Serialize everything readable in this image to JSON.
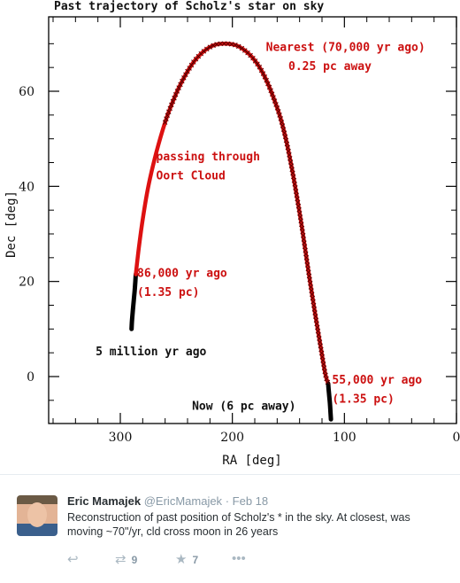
{
  "chart_data": {
    "type": "scatter",
    "title": "Past trajectory of Scholz's star on sky",
    "xlabel": "RA [deg]",
    "ylabel": "Dec [deg]",
    "xlim": [
      360,
      0
    ],
    "ylim": [
      -10,
      72
    ],
    "x_ticks": [
      300,
      200,
      100,
      0
    ],
    "y_ticks": [
      0,
      20,
      40,
      60
    ],
    "grid": false,
    "reversed_x": true,
    "track_black_start": [
      [
        290,
        10
      ],
      [
        289.5,
        12
      ],
      [
        288.8,
        14
      ],
      [
        288,
        16
      ],
      [
        287.2,
        18
      ],
      [
        286.6,
        20
      ],
      [
        286.2,
        21.5
      ]
    ],
    "track_red": [
      [
        286.2,
        21.5
      ],
      [
        283.5,
        27
      ],
      [
        280,
        33
      ],
      [
        275,
        40
      ],
      [
        268,
        47
      ],
      [
        260,
        53.5
      ],
      [
        252,
        58.5
      ],
      [
        244,
        62.5
      ],
      [
        235,
        66
      ],
      [
        225,
        68.5
      ],
      [
        215,
        69.8
      ],
      [
        205,
        70
      ],
      [
        195,
        69.5
      ],
      [
        185,
        67.8
      ],
      [
        177,
        65.5
      ],
      [
        170,
        62.5
      ],
      [
        163,
        58.5
      ],
      [
        156,
        53.5
      ],
      [
        150,
        47.5
      ],
      [
        144,
        40
      ],
      [
        138,
        31.5
      ],
      [
        132,
        22
      ],
      [
        126,
        13
      ],
      [
        121,
        6
      ],
      [
        117,
        0.5
      ],
      [
        114.5,
        -1.5
      ]
    ],
    "track_black_end": [
      [
        114.5,
        -1.5
      ],
      [
        113.8,
        -3.5
      ],
      [
        113,
        -5.5
      ],
      [
        112.4,
        -7.5
      ],
      [
        112,
        -9
      ]
    ],
    "crossed_section": [
      [
        260,
        53.5
      ],
      [
        114.5,
        -1.5
      ]
    ],
    "annotations": [
      {
        "text": "Nearest (70,000 yr ago)",
        "x": 170,
        "y": 68.5,
        "color": "#cc1111"
      },
      {
        "text": "0.25 pc away",
        "x": 150,
        "y": 64.5,
        "color": "#cc1111"
      },
      {
        "text": "passing through",
        "x": 268,
        "y": 45.5,
        "color": "#cc1111"
      },
      {
        "text": "Oort Cloud",
        "x": 268,
        "y": 41.5,
        "color": "#cc1111"
      },
      {
        "text": "86,000 yr ago",
        "x": 285,
        "y": 21,
        "color": "#cc1111"
      },
      {
        "text": "(1.35 pc)",
        "x": 285,
        "y": 17,
        "color": "#cc1111"
      },
      {
        "text": "5 million yr ago",
        "x": 322,
        "y": 4.5,
        "color": "#111111"
      },
      {
        "text": "55,000 yr ago",
        "x": 111,
        "y": -1.5,
        "color": "#cc1111"
      },
      {
        "text": "(1.35 pc)",
        "x": 111,
        "y": -5.5,
        "color": "#cc1111"
      },
      {
        "text": "Now (6 pc away)",
        "x": 236,
        "y": -7,
        "color": "#111111"
      }
    ],
    "colors": {
      "red_track": "#dd1111",
      "black_track": "#000000",
      "crosses": "#5a0000"
    }
  },
  "tweet": {
    "author_name": "Eric Mamajek",
    "handle": "@EricMamajek",
    "separator": "·",
    "date": "Feb 18",
    "text": "Reconstruction of past position of Scholz's * in the sky. At closest, was moving ~70\"/yr, cld cross moon in 26 years",
    "reply_icon": "reply-icon",
    "retweet_icon": "retweet-icon",
    "retweet_count": "9",
    "favorite_icon": "star-icon",
    "favorite_count": "7",
    "more_icon": "more-icon"
  }
}
